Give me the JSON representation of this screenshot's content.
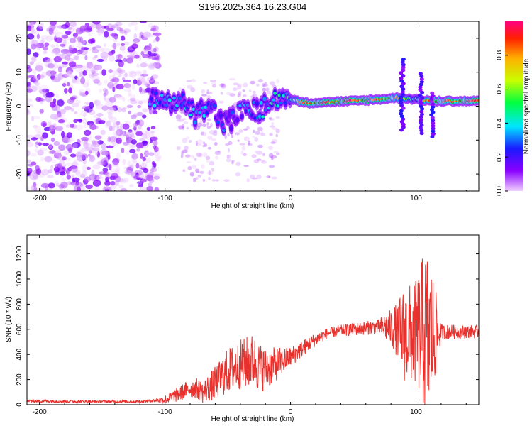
{
  "title": "S196.2025.364.16.23.G04",
  "chart_data": [
    {
      "type": "heatmap",
      "name": "spectrogram",
      "xlabel": "Height of straight line (km)",
      "ylabel": "Frequency (Hz)",
      "xlim": [
        -210,
        150
      ],
      "ylim": [
        -25,
        25
      ],
      "xticks": [
        -200,
        -100,
        0,
        100
      ],
      "yticks": [
        -20,
        -10,
        0,
        10,
        20
      ],
      "colorbar": {
        "label": "Normalized spectral amplitude",
        "range": [
          0,
          1
        ],
        "ticks": [
          "0.0",
          "0.2",
          "0.4",
          "0.6",
          "0.8"
        ],
        "tick_values": [
          0,
          0.2,
          0.4,
          0.6,
          0.8
        ],
        "colormap": [
          "#f0d0ff",
          "#8a00ff",
          "#1a1aff",
          "#00e6ff",
          "#00ff40",
          "#c8ff00",
          "#ffb000",
          "#ff2000",
          "#ff0080"
        ]
      },
      "features": {
        "noise_region_x": [
          -210,
          -105
        ],
        "ridge": [
          {
            "x": -110,
            "f": 2,
            "amp": 0.3
          },
          {
            "x": -95,
            "f": 0,
            "amp": 0.3
          },
          {
            "x": -85,
            "f": 2,
            "amp": 0.35
          },
          {
            "x": -75,
            "f": -3,
            "amp": 0.3
          },
          {
            "x": -65,
            "f": 1,
            "amp": 0.3
          },
          {
            "x": -55,
            "f": -5,
            "amp": 0.25
          },
          {
            "x": -45,
            "f": -4,
            "amp": 0.25
          },
          {
            "x": -35,
            "f": 1,
            "amp": 0.3
          },
          {
            "x": -25,
            "f": -2,
            "amp": 0.3
          },
          {
            "x": -15,
            "f": 2,
            "amp": 0.4
          },
          {
            "x": -5,
            "f": 3,
            "amp": 0.4
          },
          {
            "x": 5,
            "f": 1.5,
            "amp": 0.7
          },
          {
            "x": 15,
            "f": 1,
            "amp": 0.85
          },
          {
            "x": 30,
            "f": 1.2,
            "amp": 0.8
          },
          {
            "x": 50,
            "f": 1.5,
            "amp": 0.9
          },
          {
            "x": 70,
            "f": 2,
            "amp": 0.8
          },
          {
            "x": 85,
            "f": 2.5,
            "amp": 0.7
          },
          {
            "x": 100,
            "f": 2,
            "amp": 0.5
          },
          {
            "x": 115,
            "f": 1.5,
            "amp": 0.9
          },
          {
            "x": 130,
            "f": 1.5,
            "amp": 0.85
          },
          {
            "x": 150,
            "f": 1.5,
            "amp": 0.85
          }
        ],
        "spikes": [
          {
            "x": 89,
            "f_min": -7,
            "f_max": 14
          },
          {
            "x": 104,
            "f_min": -8,
            "f_max": 10
          },
          {
            "x": 113,
            "f_min": -9,
            "f_max": 4
          }
        ]
      }
    },
    {
      "type": "line",
      "name": "snr",
      "xlabel": "Height of straight line (km)",
      "ylabel": "SNR (10 * v/v)",
      "xlim": [
        -210,
        150
      ],
      "ylim": [
        0,
        1350
      ],
      "xticks": [
        -200,
        -100,
        0,
        100
      ],
      "yticks": [
        0,
        200,
        400,
        600,
        800,
        1000,
        1200
      ],
      "color": "#e8312c",
      "envelope": {
        "x": [
          -210,
          -160,
          -120,
          -100,
          -90,
          -80,
          -75,
          -70,
          -60,
          -50,
          -40,
          -30,
          -25,
          -20,
          -10,
          0,
          10,
          20,
          30,
          40,
          50,
          60,
          70,
          75,
          80,
          85,
          90,
          95,
          100,
          105,
          110,
          115,
          120,
          130,
          140,
          150
        ],
        "y": [
          30,
          25,
          25,
          40,
          80,
          130,
          130,
          100,
          170,
          270,
          320,
          350,
          300,
          280,
          330,
          380,
          450,
          520,
          570,
          590,
          600,
          610,
          620,
          620,
          610,
          600,
          560,
          560,
          570,
          580,
          560,
          560,
          580,
          580,
          580,
          580
        ]
      },
      "noise_amplitude": {
        "x": [
          -210,
          -110,
          -90,
          -70,
          -50,
          -30,
          -15,
          0,
          30,
          70,
          80,
          85,
          90,
          95,
          100,
          105,
          110,
          115,
          120,
          150
        ],
        "y": [
          12,
          10,
          60,
          90,
          180,
          220,
          150,
          80,
          40,
          60,
          150,
          220,
          380,
          400,
          420,
          600,
          700,
          400,
          60,
          50
        ]
      }
    }
  ]
}
